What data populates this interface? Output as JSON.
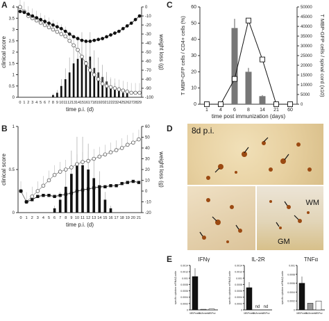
{
  "panels": {
    "a": {
      "letter": "A",
      "xlabel": "time p.i. (d)",
      "ylabel_left": "clinical score",
      "ylabel_right": "weight loss (g)"
    },
    "b": {
      "letter": "B",
      "xlabel": "time p.i. (d)",
      "ylabel_left": "clinical score",
      "ylabel_right": "weight loss (g)"
    },
    "c": {
      "letter": "C",
      "xlabel": "time post immunization (days)",
      "ylabel_left": "T MBP-GFP cells / CD4+ cells (%)",
      "ylabel_right": "T MBP-GFP cells / spinal cord (x10)"
    },
    "d": {
      "letter": "D",
      "sub_label": "8d p.i.",
      "wm": "WM",
      "gm": "GM"
    },
    "e": {
      "letter": "E",
      "titles": [
        "IFNγ",
        "IL-2R",
        "TNFα"
      ],
      "nd": "nd",
      "ylabel": "specific cytokine mRNA/β-actin",
      "groups": [
        "MBPmem",
        "OVAmem",
        "MBPnv"
      ]
    }
  },
  "chart_data": [
    {
      "type": "bar+line",
      "panel": "A",
      "x": [
        0,
        1,
        2,
        3,
        4,
        5,
        6,
        7,
        8,
        9,
        10,
        11,
        12,
        13,
        14,
        15,
        16,
        17,
        18,
        19,
        20,
        21,
        22,
        23,
        24,
        25,
        26,
        27,
        28,
        29
      ],
      "ylim_left": [
        0,
        4
      ],
      "ylim_right": [
        -100,
        0
      ],
      "yticks_left": [
        0,
        0.5,
        1,
        1.5,
        2,
        2.5,
        3,
        3.5,
        4
      ],
      "yticks_right": [
        -100,
        -90,
        -80,
        -70,
        -60,
        -50,
        -40,
        -30,
        -20,
        -10,
        0
      ],
      "series": [
        {
          "values": [
            0,
            0,
            0,
            0,
            0,
            0,
            0,
            0,
            0.1,
            0.2,
            0.5,
            0.8,
            1.1,
            1.5,
            1.7,
            1.8,
            1.6,
            1.8,
            1.3,
            1.1,
            0.9,
            0.7,
            0.5,
            0.4,
            0.3,
            0.2,
            0.2,
            0,
            0,
            0
          ]
        },
        {
          "values": [
            -5,
            -6,
            -8,
            -10,
            -12,
            -14,
            -16,
            -18,
            -20,
            -22,
            -24,
            -27,
            -30,
            -33,
            -35,
            -37,
            -38,
            -38,
            -37,
            -36,
            -35,
            -33,
            -31,
            -29,
            -27,
            -24,
            -21,
            -18,
            -14,
            -10
          ]
        },
        {
          "values": [
            4,
            3.8,
            3.6,
            3.5,
            3.4,
            3.3,
            3.2,
            3.1,
            3.0,
            2.9,
            2.8,
            2.7,
            2.5,
            2.3,
            2.1,
            1.8,
            1.5,
            1.2,
            1.0,
            0.8,
            0.6,
            0.5,
            0.45,
            0.4,
            0.35,
            0.3,
            0.25,
            0.2,
            0.2,
            0.2
          ]
        }
      ]
    },
    {
      "type": "bar+line",
      "panel": "B",
      "x": [
        0,
        1,
        2,
        3,
        4,
        5,
        6,
        7,
        8,
        9,
        10,
        11,
        12,
        13,
        14,
        15,
        16,
        17,
        18,
        19,
        20,
        21
      ],
      "ylim_left": [
        0,
        1
      ],
      "ylim_right": [
        -20,
        60
      ],
      "yticks_left": [
        0,
        0.5,
        1
      ],
      "yticks_right": [
        -20,
        -10,
        0,
        10,
        20,
        30,
        40,
        50,
        60
      ],
      "series": [
        {
          "values": [
            0,
            0,
            0,
            0,
            0,
            0,
            0.05,
            0.15,
            0.3,
            0.45,
            0.55,
            0.55,
            0.5,
            0.4,
            0.3,
            0.15,
            0.05,
            0,
            0,
            0,
            0,
            0
          ]
        },
        {
          "values": [
            0,
            -10,
            -8,
            -5,
            -4,
            -4,
            -5,
            -4,
            -3,
            -2,
            0,
            1,
            2,
            3,
            4,
            4,
            5,
            5,
            7,
            8,
            9,
            8
          ]
        },
        {
          "values": [
            0,
            -10,
            -5,
            0,
            5,
            10,
            15,
            18,
            20,
            22,
            25,
            27,
            28,
            30,
            32,
            34,
            36,
            38,
            40,
            43,
            45,
            48
          ]
        }
      ]
    },
    {
      "type": "bar+line",
      "panel": "C",
      "categories": [
        "1",
        "4",
        "6",
        "8",
        "14",
        "21",
        "60"
      ],
      "ylim_left": [
        0,
        60
      ],
      "ylim_right": [
        0,
        50000
      ],
      "yticks_left": [
        0,
        10,
        20,
        30,
        40,
        50,
        60
      ],
      "yticks_right": [
        0,
        5000,
        10000,
        15000,
        20000,
        25000,
        30000,
        35000,
        40000,
        45000,
        50000
      ],
      "series": [
        {
          "values": [
            0,
            0,
            47,
            20,
            5,
            0,
            0
          ]
        },
        {
          "values": [
            0,
            0,
            13000,
            43000,
            23000,
            0,
            0
          ]
        }
      ]
    },
    {
      "type": "bar",
      "panel": "E",
      "groups": [
        "IFNγ",
        "IL-2R",
        "TNFα"
      ],
      "categories": [
        "MBPmem",
        "OVAmem",
        "MBPnv"
      ],
      "ylims": [
        [
          0,
          0.0014
        ],
        [
          0,
          0.0014
        ],
        [
          0,
          0.001
        ]
      ],
      "yticks": [
        [
          0,
          0.0002,
          0.0004,
          0.0006,
          0.0008,
          0.001,
          0.0012,
          0.0014
        ],
        [
          0,
          0.0002,
          0.0004,
          0.0006,
          0.0008,
          0.001,
          0.0012,
          0.0014
        ],
        [
          0,
          0.0002,
          0.0004,
          0.0006,
          0.0008,
          0.001
        ]
      ],
      "values": [
        [
          0.00105,
          2e-05,
          3e-05
        ],
        [
          0.0007,
          0,
          0
        ],
        [
          0.0006,
          0.00015,
          0.0002
        ]
      ],
      "nd": [
        [
          false,
          false,
          false
        ],
        [
          false,
          true,
          true
        ],
        [
          false,
          false,
          false
        ]
      ]
    }
  ]
}
